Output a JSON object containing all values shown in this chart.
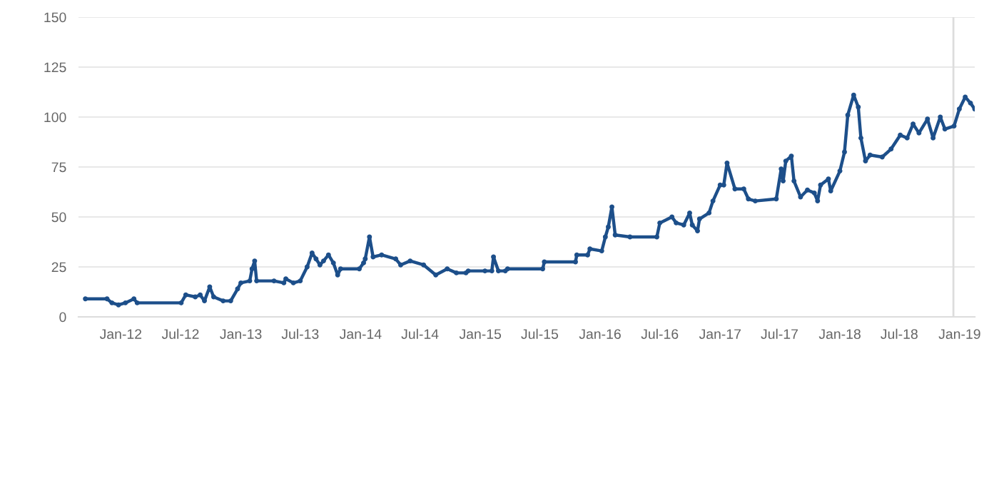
{
  "chart_data": {
    "type": "line",
    "color": "#1d4f8a",
    "marker": "circle",
    "line_style": "solid",
    "grid": "y",
    "legend": false,
    "x": [
      "2011-09-15",
      "2011-11-20",
      "2011-12-05",
      "2011-12-25",
      "2012-01-15",
      "2012-02-10",
      "2012-02-20",
      "2012-07-03",
      "2012-07-17",
      "2012-08-15",
      "2012-08-30",
      "2012-09-12",
      "2012-09-28",
      "2012-10-10",
      "2012-11-08",
      "2012-12-01",
      "2012-12-22",
      "2013-01-01",
      "2013-01-28",
      "2013-02-04",
      "2013-02-12",
      "2013-02-18",
      "2013-04-12",
      "2013-05-12",
      "2013-05-18",
      "2013-06-10",
      "2013-07-01",
      "2013-07-22",
      "2013-08-06",
      "2013-08-18",
      "2013-08-30",
      "2013-09-10",
      "2013-09-25",
      "2013-10-10",
      "2013-10-23",
      "2013-11-01",
      "2013-12-28",
      "2014-01-10",
      "2014-01-15",
      "2014-01-28",
      "2014-02-08",
      "2014-03-06",
      "2014-04-18",
      "2014-05-03",
      "2014-06-01",
      "2014-07-12",
      "2014-08-18",
      "2014-09-22",
      "2014-10-20",
      "2014-11-18",
      "2014-11-25",
      "2015-01-15",
      "2015-02-05",
      "2015-02-10",
      "2015-02-25",
      "2015-03-18",
      "2015-03-25",
      "2015-07-10",
      "2015-07-15",
      "2015-10-18",
      "2015-10-22",
      "2015-11-24",
      "2015-12-01",
      "2016-01-06",
      "2016-01-17",
      "2016-01-26",
      "2016-02-06",
      "2016-02-16",
      "2016-04-01",
      "2016-06-22",
      "2016-07-01",
      "2016-08-07",
      "2016-08-20",
      "2016-09-12",
      "2016-09-30",
      "2016-10-08",
      "2016-10-24",
      "2016-10-30",
      "2016-11-28",
      "2016-12-10",
      "2017-01-01",
      "2017-01-12",
      "2017-01-22",
      "2017-02-15",
      "2017-03-14",
      "2017-03-28",
      "2017-04-18",
      "2017-06-21",
      "2017-07-06",
      "2017-07-12",
      "2017-07-20",
      "2017-08-06",
      "2017-08-14",
      "2017-09-03",
      "2017-09-24",
      "2017-10-15",
      "2017-10-25",
      "2017-11-03",
      "2017-11-27",
      "2017-12-04",
      "2018-01-01",
      "2018-01-15",
      "2018-01-25",
      "2018-02-12",
      "2018-02-26",
      "2018-03-06",
      "2018-03-20",
      "2018-04-03",
      "2018-05-10",
      "2018-06-06",
      "2018-07-04",
      "2018-07-25",
      "2018-08-12",
      "2018-08-30",
      "2018-09-25",
      "2018-10-12",
      "2018-11-03",
      "2018-11-17",
      "2018-12-15",
      "2018-12-31",
      "2019-01-18",
      "2019-02-03",
      "2019-02-16"
    ],
    "values": [
      9,
      9,
      7,
      6,
      7,
      9,
      7,
      7,
      11,
      10,
      11,
      8,
      15,
      10,
      8,
      8,
      14,
      17,
      18,
      24,
      28,
      18,
      18,
      17,
      19,
      17,
      18,
      25,
      32,
      29,
      26,
      28,
      31,
      27,
      21,
      24,
      24,
      27,
      29,
      40,
      30,
      31,
      29,
      26,
      28,
      26,
      21,
      24,
      22,
      22,
      23,
      23,
      23,
      30,
      23,
      23,
      24,
      24,
      27.5,
      27.5,
      31,
      31,
      34,
      33,
      40,
      45,
      55,
      41,
      40,
      40,
      47,
      50,
      47,
      46,
      52,
      46,
      43,
      49,
      52,
      58,
      66,
      66,
      77,
      64,
      64,
      59,
      58,
      59,
      74,
      68,
      78,
      80.5,
      68,
      60,
      63.5,
      62,
      58,
      66,
      69,
      63,
      73,
      82.5,
      101,
      111,
      105,
      89.5,
      78,
      81,
      80,
      84,
      91,
      89.5,
      96.5,
      92,
      99,
      89.5,
      100,
      94,
      95.5,
      104,
      110,
      107,
      104
    ],
    "xlim": [
      "2011-08-25",
      "2019-02-16"
    ],
    "xticks": [
      {
        "value": "2012-01-01",
        "label": "Jan-12"
      },
      {
        "value": "2012-07-01",
        "label": "Jul-12"
      },
      {
        "value": "2013-01-01",
        "label": "Jan-13"
      },
      {
        "value": "2013-07-01",
        "label": "Jul-13"
      },
      {
        "value": "2014-01-01",
        "label": "Jan-14"
      },
      {
        "value": "2014-07-01",
        "label": "Jul-14"
      },
      {
        "value": "2015-01-01",
        "label": "Jan-15"
      },
      {
        "value": "2015-07-01",
        "label": "Jul-15"
      },
      {
        "value": "2016-01-01",
        "label": "Jan-16"
      },
      {
        "value": "2016-07-01",
        "label": "Jul-16"
      },
      {
        "value": "2017-01-01",
        "label": "Jan-17"
      },
      {
        "value": "2017-07-01",
        "label": "Jul-17"
      },
      {
        "value": "2018-01-01",
        "label": "Jan-18"
      },
      {
        "value": "2018-07-01",
        "label": "Jul-18"
      },
      {
        "value": "2019-01-01",
        "label": "Jan-19"
      }
    ],
    "ylim": [
      0,
      150
    ],
    "yticks": [
      0,
      25,
      50,
      75,
      100,
      125,
      150
    ],
    "ref_lines": [
      {
        "axis": "x",
        "value": "2018-12-13",
        "color": "#dddddd"
      }
    ]
  }
}
